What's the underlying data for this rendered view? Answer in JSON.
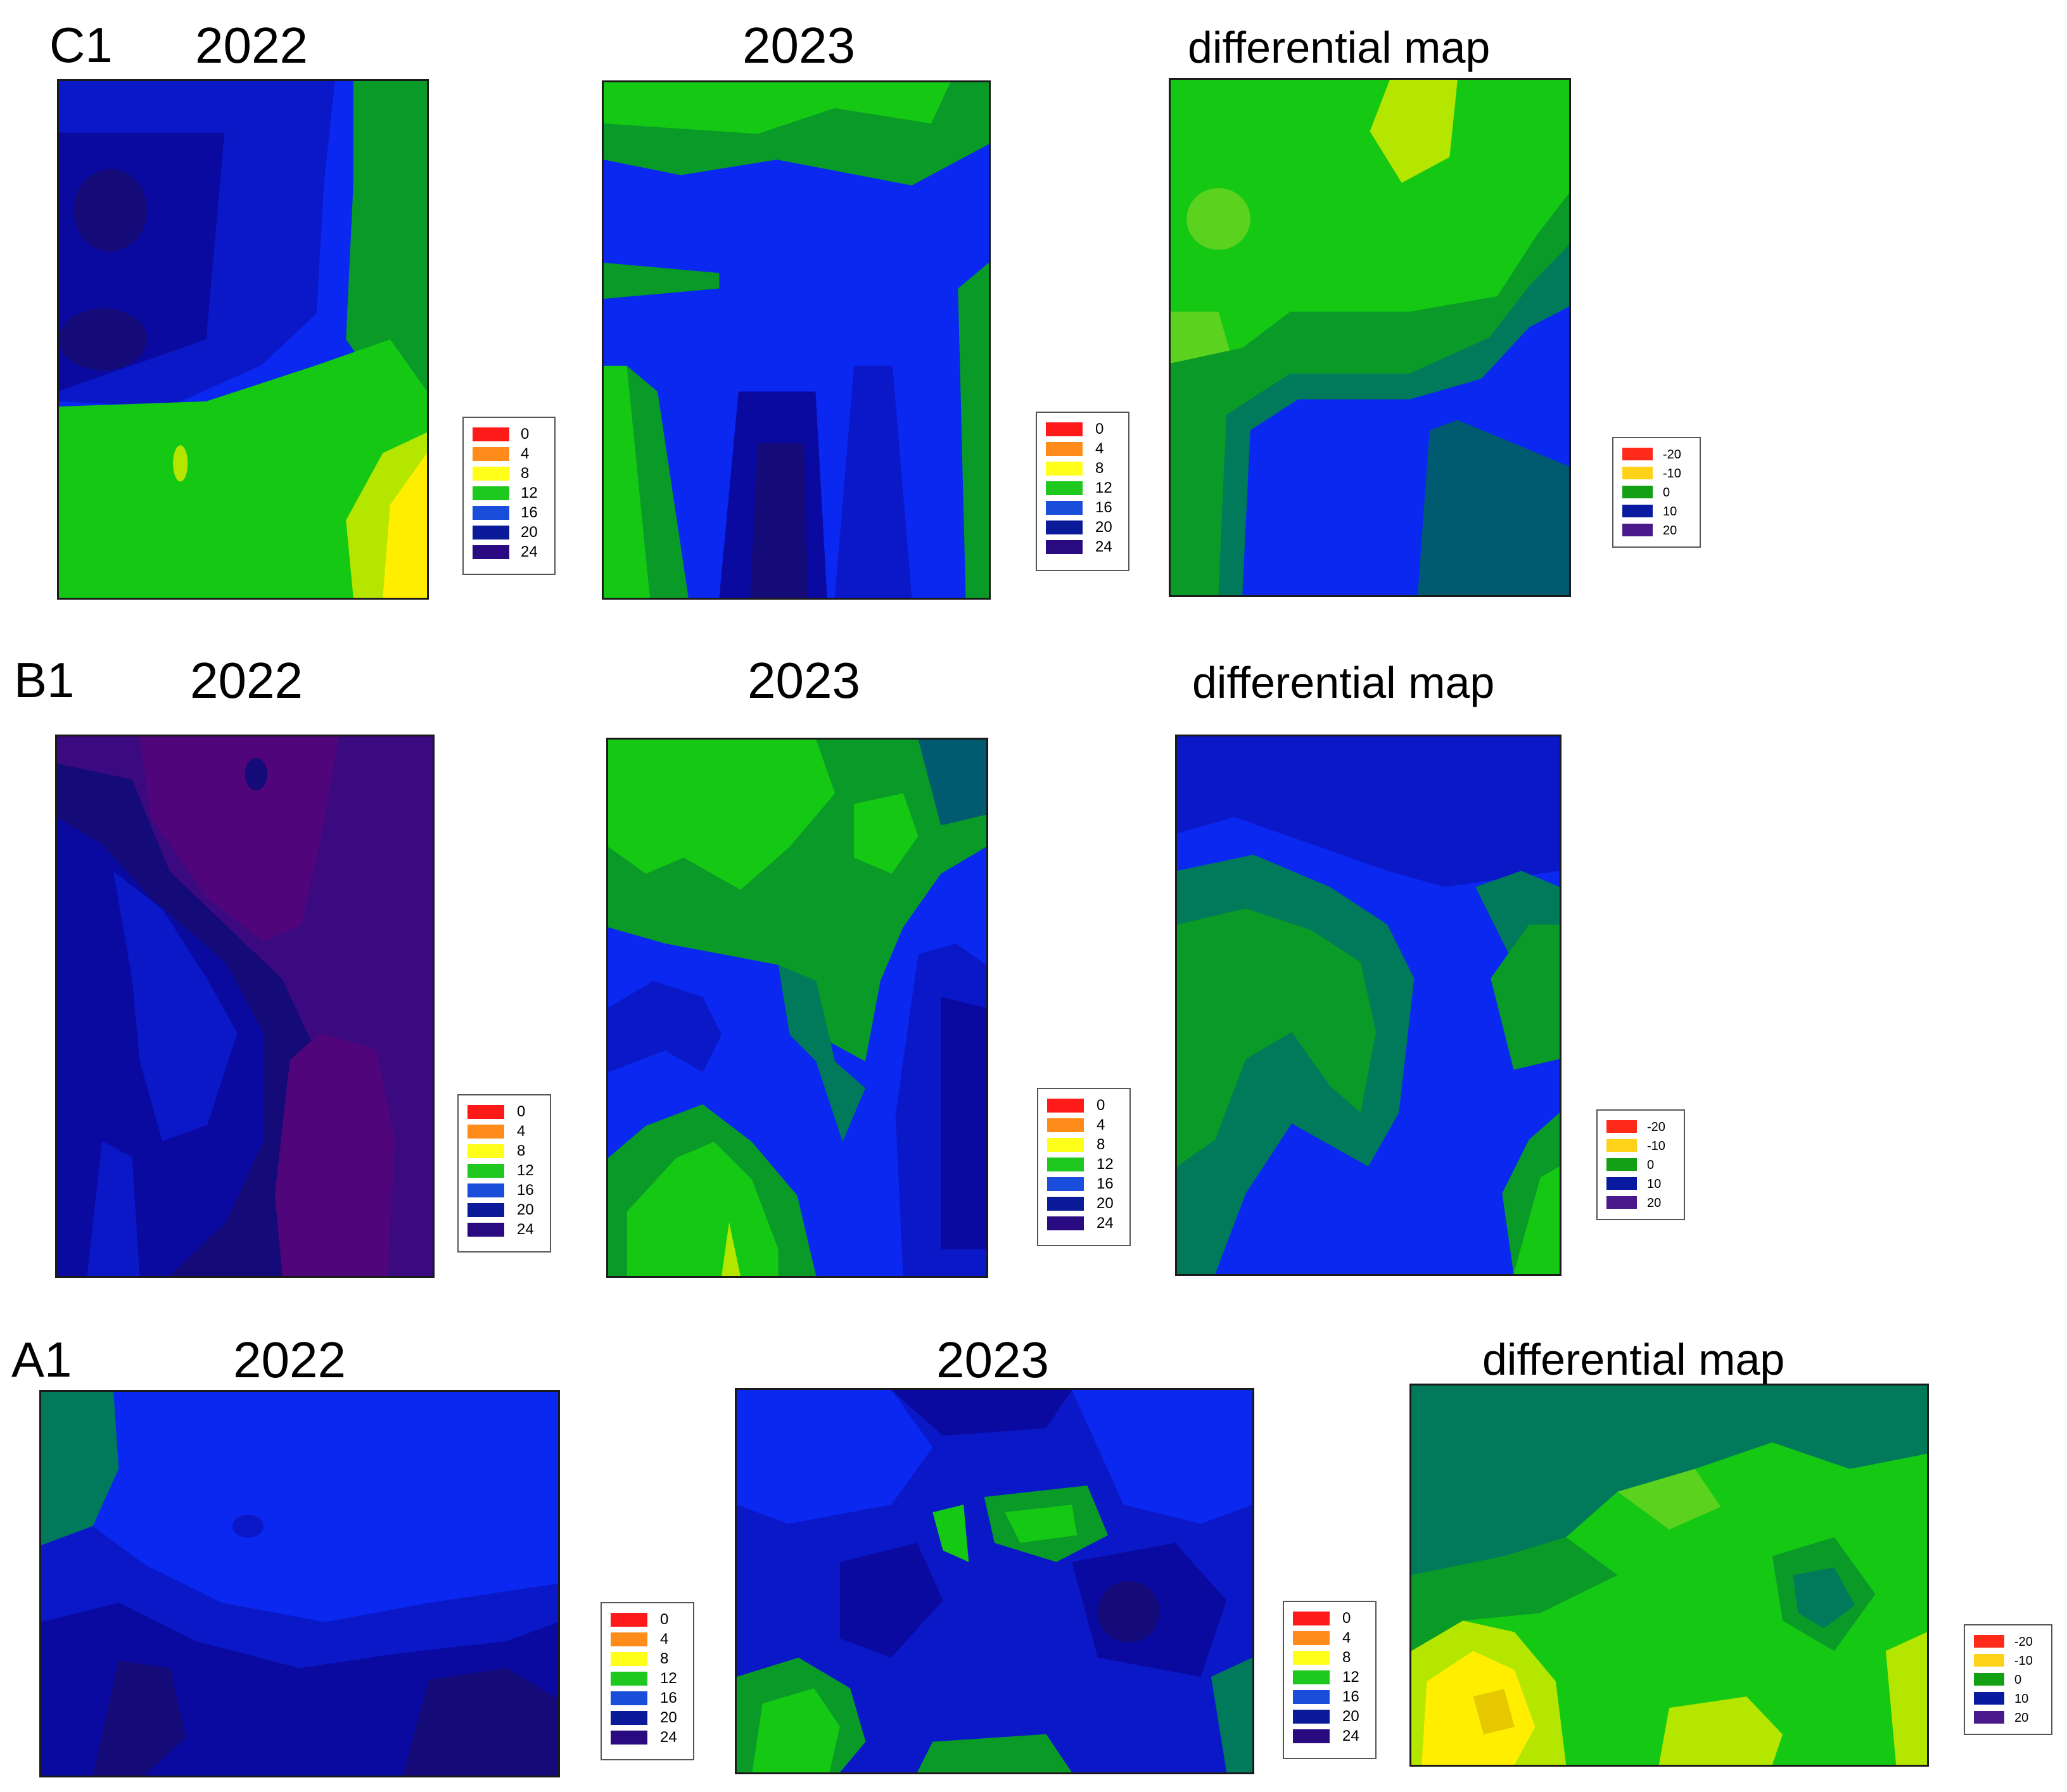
{
  "rows": [
    {
      "label": "C1",
      "panels": [
        {
          "title": "2022",
          "legend": "depth"
        },
        {
          "title": "2023",
          "legend": "depth"
        },
        {
          "title": "differential map",
          "legend": "diff"
        }
      ]
    },
    {
      "label": "B1",
      "panels": [
        {
          "title": "2022",
          "legend": "depth"
        },
        {
          "title": "2023",
          "legend": "depth"
        },
        {
          "title": "differential map",
          "legend": "diff"
        }
      ]
    },
    {
      "label": "A1",
      "panels": [
        {
          "title": "2022",
          "legend": "depth"
        },
        {
          "title": "2023",
          "legend": "depth"
        },
        {
          "title": "differential map",
          "legend": "diff"
        }
      ]
    }
  ],
  "legends": {
    "depth": {
      "items": [
        {
          "label": "0",
          "color": "#ff1a1a"
        },
        {
          "label": "4",
          "color": "#ff8c1a"
        },
        {
          "label": "8",
          "color": "#ffff1a"
        },
        {
          "label": "12",
          "color": "#1ec81e"
        },
        {
          "label": "16",
          "color": "#1a4dd9"
        },
        {
          "label": "20",
          "color": "#0a1a99"
        },
        {
          "label": "24",
          "color": "#2a0a80"
        }
      ]
    },
    "diff": {
      "items": [
        {
          "label": "-20",
          "color": "#ff2a1a"
        },
        {
          "label": "-10",
          "color": "#ffd21a"
        },
        {
          "label": "0",
          "color": "#14a014"
        },
        {
          "label": "10",
          "color": "#0a1aa0"
        },
        {
          "label": "20",
          "color": "#4a1a8c"
        }
      ]
    }
  },
  "palette": {
    "yellow": "#ffee00",
    "yellow_green": "#b4e600",
    "light_green": "#5ad21e",
    "green": "#14c814",
    "mid_green": "#0a9a28",
    "teal": "#007a5a",
    "dark_teal": "#005a70",
    "blue": "#0a28f0",
    "mid_blue": "#0a18c8",
    "dark_blue": "#0a0aa0",
    "navy": "#140a78",
    "purple": "#3c0a80",
    "violet": "#50067a"
  }
}
